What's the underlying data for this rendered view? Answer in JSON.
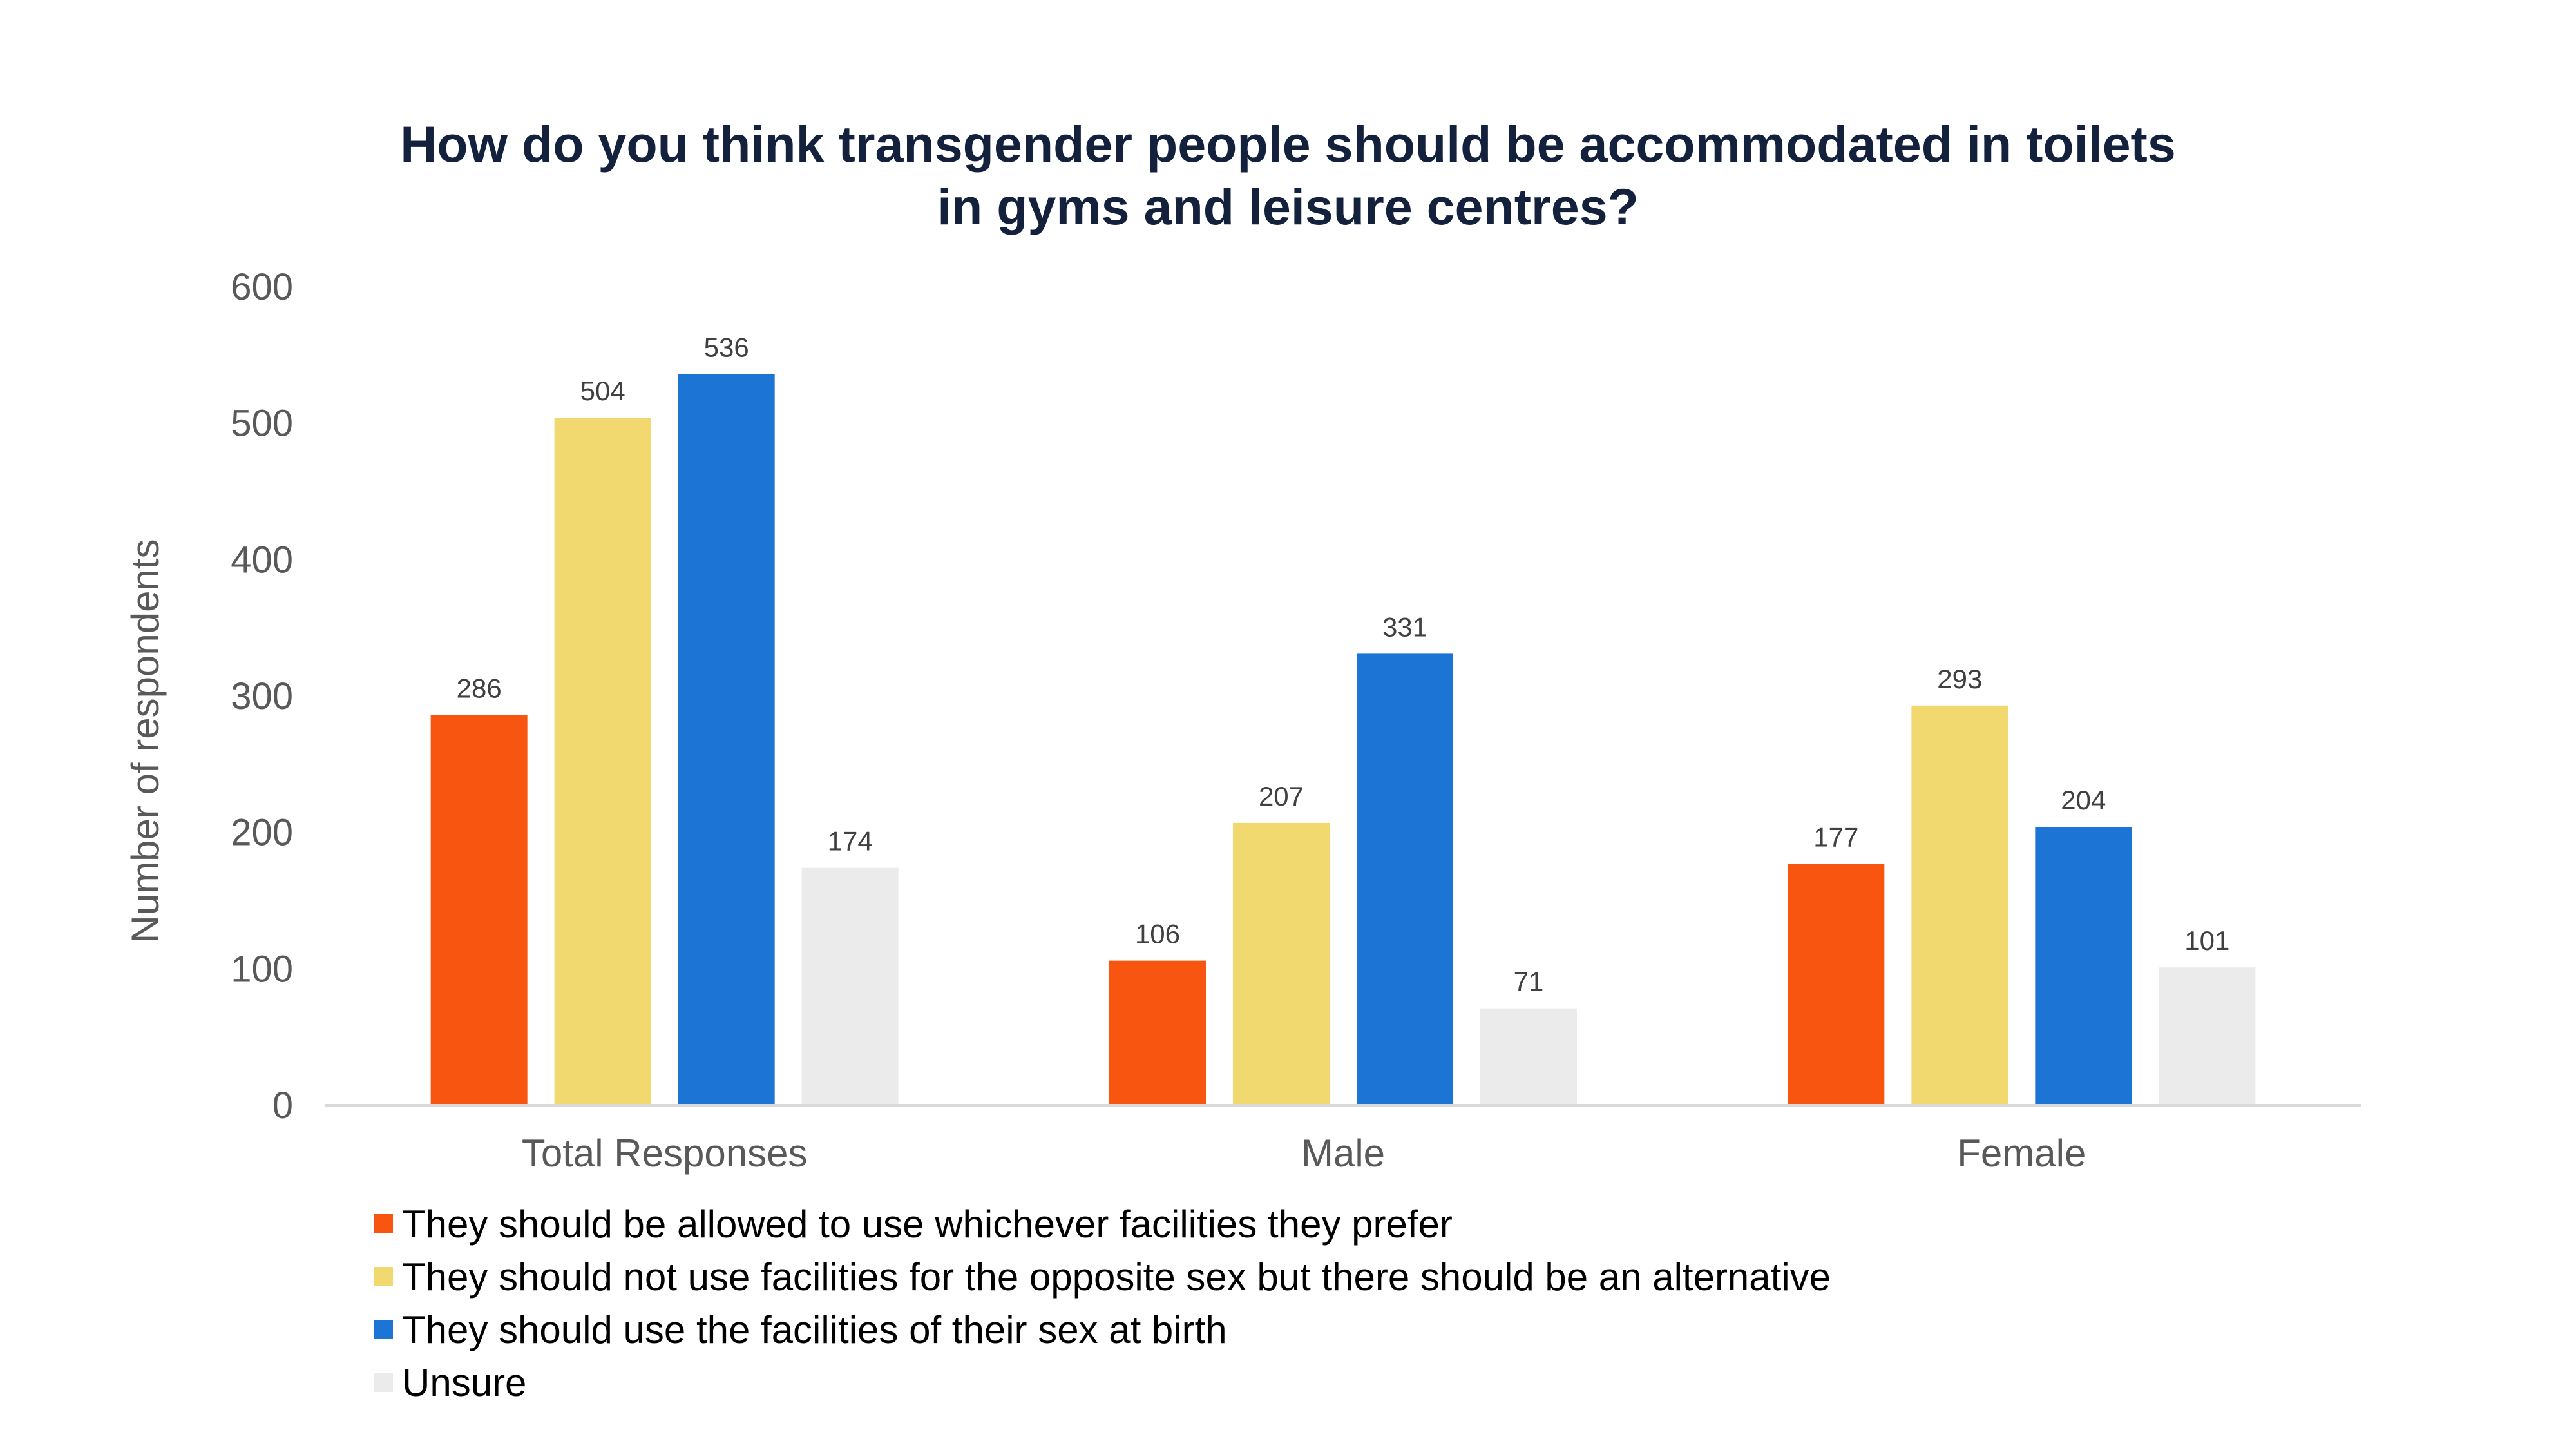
{
  "chart_data": {
    "type": "bar",
    "title_lines": [
      "How do you think transgender people should be accommodated in toilets",
      "in gyms and leisure centres?"
    ],
    "xlabel": "",
    "ylabel": "Number of respondents",
    "ylim": [
      0,
      600
    ],
    "yticks": [
      0,
      100,
      200,
      300,
      400,
      500,
      600
    ],
    "grid": false,
    "legend_position": "bottom-left",
    "categories": [
      "Total Responses",
      "Male",
      "Female"
    ],
    "series": [
      {
        "name": "They should be allowed to use whichever facilities they prefer",
        "color": "#f75510",
        "values": [
          286,
          106,
          177
        ]
      },
      {
        "name": "They should not use facilities for the opposite sex but there should be an alternative",
        "color": "#f1d970",
        "values": [
          504,
          207,
          293
        ]
      },
      {
        "name": "They should use the facilities of their sex at birth",
        "color": "#1c75d4",
        "values": [
          536,
          331,
          204
        ]
      },
      {
        "name": "Unsure",
        "color": "#ebebeb",
        "values": [
          174,
          71,
          101
        ]
      }
    ]
  }
}
